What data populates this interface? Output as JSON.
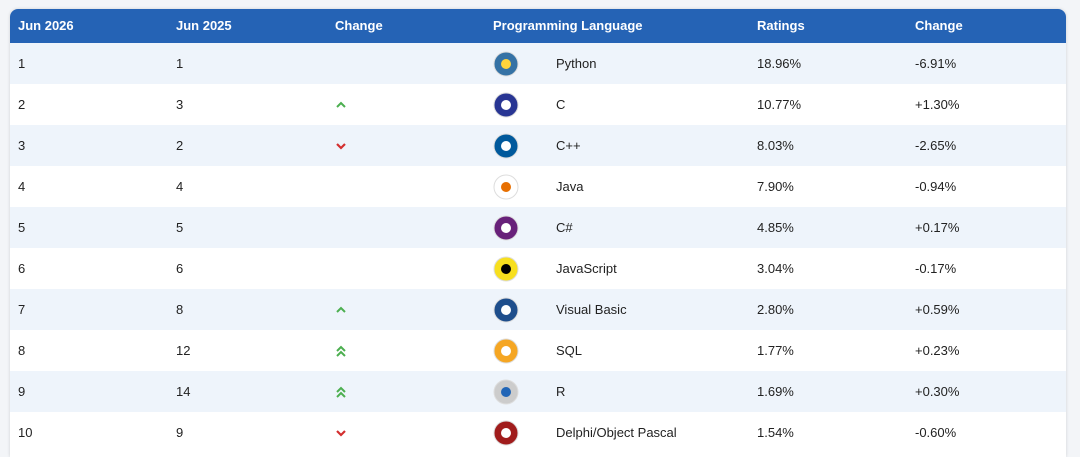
{
  "table": {
    "headers": [
      "Jun 2026",
      "Jun 2025",
      "Change",
      "Programming Language",
      "Ratings",
      "Change"
    ],
    "rows": [
      [
        "1",
        "1",
        "Python",
        "18.96%",
        "-6.91%"
      ],
      [
        "2",
        "3",
        "C",
        "10.77%",
        "+1.30%"
      ],
      [
        "3",
        "2",
        "C++",
        "8.03%",
        "-2.65%"
      ],
      [
        "4",
        "4",
        "Java",
        "7.90%",
        "-0.94%"
      ],
      [
        "5",
        "5",
        "C#",
        "4.85%",
        "+0.17%"
      ],
      [
        "6",
        "6",
        "JavaScript",
        "3.04%",
        "-0.17%"
      ],
      [
        "7",
        "8",
        "Visual Basic",
        "2.80%",
        "+0.59%"
      ],
      [
        "8",
        "12",
        "SQL",
        "1.77%",
        "+0.23%"
      ],
      [
        "9",
        "14",
        "R",
        "1.69%",
        "+0.30%"
      ],
      [
        "10",
        "9",
        "Delphi/Object Pascal",
        "1.54%",
        "-0.60%"
      ]
    ]
  }
}
